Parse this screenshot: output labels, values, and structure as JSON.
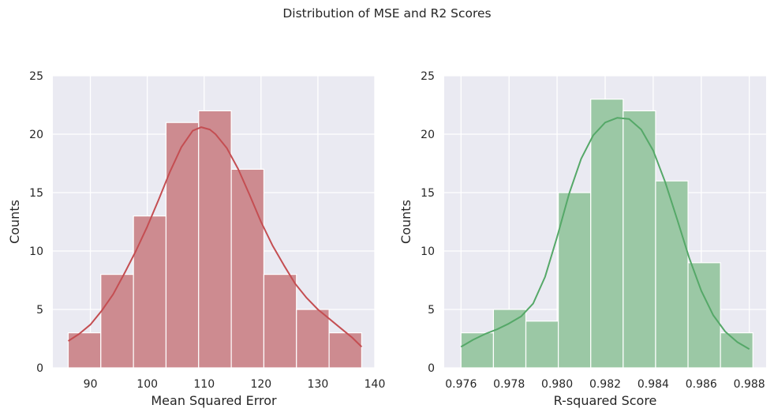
{
  "suptitle": "Distribution of MSE and R2 Scores",
  "chart_data": [
    {
      "type": "bar",
      "subtype": "histogram_with_kde",
      "title": "",
      "xlabel": "Mean Squared Error",
      "ylabel": "Counts",
      "xlim": [
        83.4,
        140.0
      ],
      "ylim": [
        0,
        25
      ],
      "xticks": [
        "90",
        "100",
        "110",
        "120",
        "130",
        "140"
      ],
      "xtick_values": [
        90,
        100,
        110,
        120,
        130,
        140
      ],
      "yticks": [
        "0",
        "5",
        "10",
        "15",
        "20",
        "25"
      ],
      "ytick_values": [
        0,
        5,
        10,
        15,
        20,
        25
      ],
      "grid": true,
      "bar_color": "#cd8b90",
      "kde_color": "#c44e52",
      "bin_edges": [
        86.1,
        91.83,
        97.57,
        103.3,
        109.03,
        114.77,
        120.5,
        126.23,
        131.97,
        137.7
      ],
      "counts": [
        3,
        8,
        13,
        21,
        22,
        17,
        8,
        5,
        3
      ],
      "kde": {
        "x": [
          86.1,
          88,
          90,
          92,
          94,
          96,
          98,
          100,
          102,
          104,
          106,
          108,
          109.5,
          111,
          112,
          114,
          116,
          118,
          120,
          122,
          124,
          126,
          128,
          130,
          132,
          134,
          136,
          137.7
        ],
        "y": [
          2.3,
          2.9,
          3.7,
          4.9,
          6.3,
          8.1,
          10.0,
          12.1,
          14.4,
          16.8,
          18.9,
          20.3,
          20.6,
          20.4,
          20.0,
          18.8,
          17.0,
          14.8,
          12.5,
          10.5,
          8.8,
          7.2,
          6.0,
          5.0,
          4.2,
          3.4,
          2.6,
          1.8
        ]
      }
    },
    {
      "type": "bar",
      "subtype": "histogram_with_kde",
      "title": "",
      "xlabel": "R-squared Score",
      "ylabel": "Counts",
      "xlim": [
        0.9753,
        0.9887
      ],
      "ylim": [
        0,
        25
      ],
      "xticks": [
        "0.976",
        "0.978",
        "0.980",
        "0.982",
        "0.984",
        "0.986",
        "0.988"
      ],
      "xtick_values": [
        0.976,
        0.978,
        0.98,
        0.982,
        0.984,
        0.986,
        0.988
      ],
      "yticks": [
        "0",
        "5",
        "10",
        "15",
        "20",
        "25"
      ],
      "ytick_values": [
        0,
        5,
        10,
        15,
        20,
        25
      ],
      "grid": true,
      "bar_color": "#9bc8a5",
      "kde_color": "#55a868",
      "bin_edges": [
        0.976,
        0.97735,
        0.9787,
        0.98005,
        0.9814,
        0.98275,
        0.9841,
        0.98545,
        0.9868,
        0.98815
      ],
      "counts": [
        3,
        5,
        4,
        15,
        23,
        22,
        16,
        9,
        3
      ],
      "kde": {
        "x": [
          0.976,
          0.9765,
          0.977,
          0.9775,
          0.978,
          0.9785,
          0.979,
          0.9795,
          0.98,
          0.9805,
          0.981,
          0.9815,
          0.982,
          0.9825,
          0.983,
          0.9835,
          0.984,
          0.9845,
          0.985,
          0.9855,
          0.986,
          0.9865,
          0.987,
          0.9875,
          0.988
        ],
        "y": [
          1.8,
          2.4,
          2.9,
          3.3,
          3.8,
          4.4,
          5.5,
          7.8,
          11.2,
          14.9,
          17.9,
          19.9,
          21.0,
          21.4,
          21.3,
          20.4,
          18.6,
          15.9,
          12.7,
          9.4,
          6.6,
          4.5,
          3.1,
          2.2,
          1.6
        ]
      }
    }
  ]
}
